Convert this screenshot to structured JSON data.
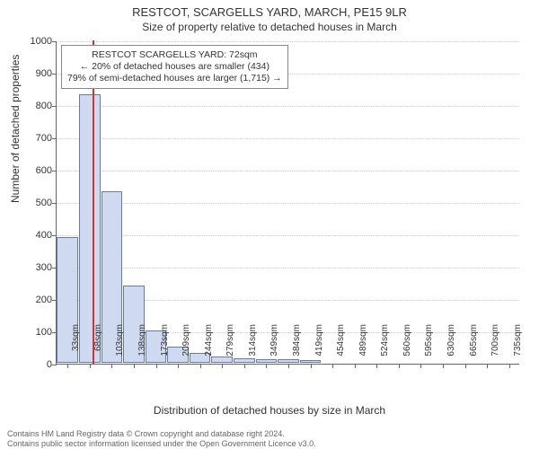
{
  "title": "RESTCOT, SCARGELLS YARD, MARCH, PE15 9LR",
  "subtitle": "Size of property relative to detached houses in March",
  "ylabel": "Number of detached properties",
  "xlabel": "Distribution of detached houses by size in March",
  "chart": {
    "type": "bar",
    "background_color": "#ffffff",
    "bar_fill": "#cfd9f0",
    "bar_stroke": "#6a7aa8",
    "grid_color": "#cccccc",
    "axis_color": "#666666",
    "marker_color": "#d33333",
    "ylim": [
      0,
      1000
    ],
    "ytick_step": 100,
    "yticks": [
      0,
      100,
      200,
      300,
      400,
      500,
      600,
      700,
      800,
      900,
      1000
    ],
    "x_categories": [
      "33sqm",
      "68sqm",
      "103sqm",
      "138sqm",
      "173sqm",
      "209sqm",
      "244sqm",
      "279sqm",
      "314sqm",
      "349sqm",
      "384sqm",
      "419sqm",
      "454sqm",
      "489sqm",
      "524sqm",
      "560sqm",
      "595sqm",
      "630sqm",
      "665sqm",
      "700sqm",
      "735sqm"
    ],
    "values": [
      390,
      830,
      530,
      240,
      100,
      50,
      30,
      20,
      15,
      12,
      10,
      8,
      0,
      0,
      0,
      0,
      0,
      0,
      0,
      0,
      0
    ],
    "bar_width_ratio": 0.96,
    "marker_x_value": 72,
    "x_min": 33,
    "x_step": 35
  },
  "callout": {
    "line1": "RESTCOT SCARGELLS YARD: 72sqm",
    "line2": "← 20% of detached houses are smaller (434)",
    "line3": "79% of semi-detached houses are larger (1,715) →"
  },
  "footer": {
    "line1": "Contains HM Land Registry data © Crown copyright and database right 2024.",
    "line2": "Contains public sector information licensed under the Open Government Licence v3.0."
  }
}
